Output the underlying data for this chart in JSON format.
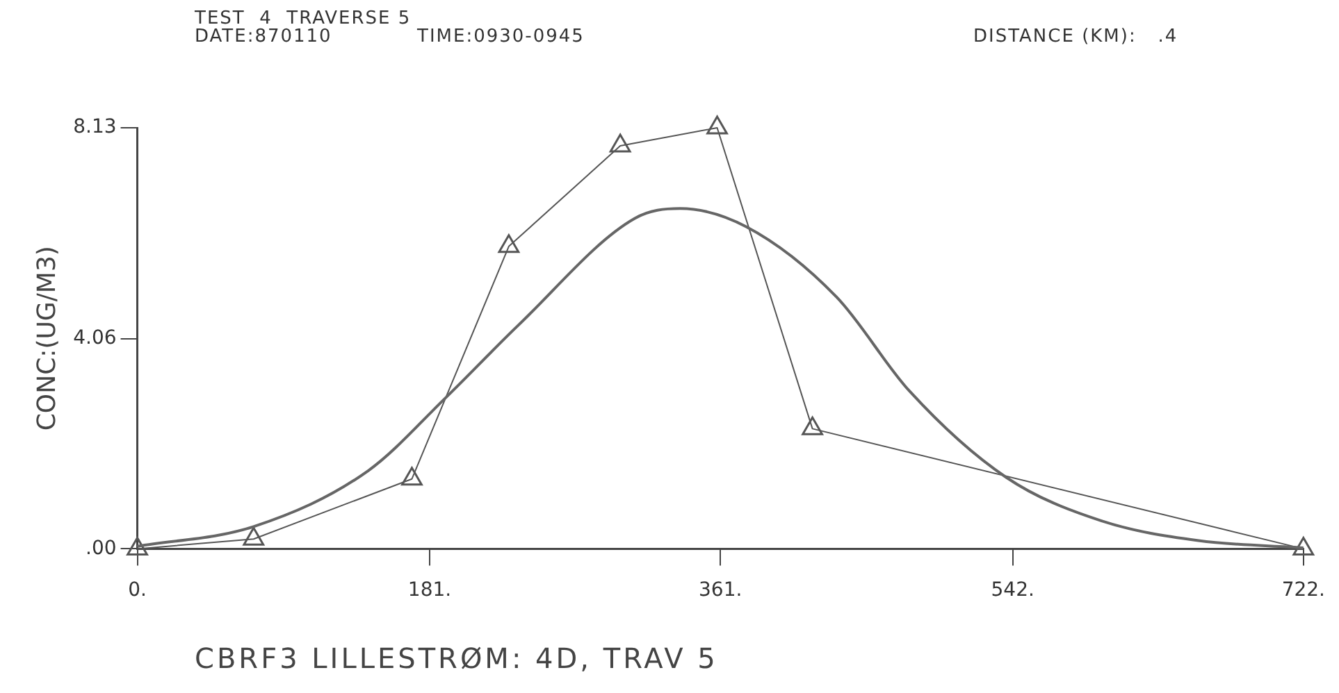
{
  "chart_data": {
    "type": "line",
    "title": "TEST  4  TRAVERSE 5",
    "subtitle": "DATE:870110",
    "annotations": [
      "TIME:0930-0945",
      "DISTANCE (KM):   .4"
    ],
    "xlabel": "CBRF3 LILLESTRØM: 4D, TRAV 5",
    "ylabel": "CONC:(UG/M3)",
    "xlim": [
      0,
      722
    ],
    "xticks": [
      {
        "value": 0,
        "label": "0."
      },
      {
        "value": 181,
        "label": "181."
      },
      {
        "value": 361,
        "label": "361."
      },
      {
        "value": 542,
        "label": "542."
      },
      {
        "value": 722,
        "label": "722."
      }
    ],
    "ylim": [
      0,
      8.13
    ],
    "yticks": [
      {
        "value": 0,
        "label": ".00"
      },
      4.06,
      8.13
    ],
    "grid": false,
    "legend": false,
    "line_style": "solid",
    "series": [
      {
        "color": "#555555",
        "marker": "triangle",
        "x": [
          0,
          72,
          170,
          230,
          299,
          359,
          418,
          722
        ],
        "values": [
          0,
          0.19,
          1.35,
          5.84,
          7.78,
          8.13,
          2.32,
          0
        ]
      },
      {
        "color": "#666666",
        "marker": "none",
        "x": [
          0,
          72,
          143,
          191,
          236,
          308,
          336,
          377,
          433,
          478,
          538,
          597,
          657,
          722
        ],
        "values": [
          0.05,
          0.43,
          1.51,
          2.92,
          4.32,
          6.38,
          6.57,
          6.22,
          4.86,
          3.05,
          1.38,
          0.54,
          0.16,
          0.02
        ]
      }
    ]
  }
}
